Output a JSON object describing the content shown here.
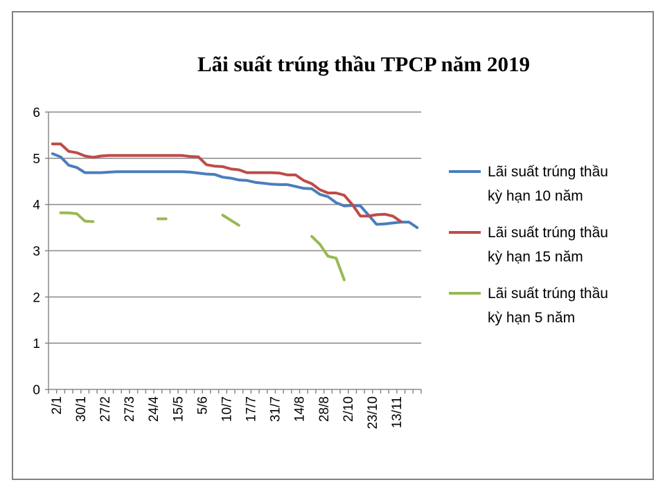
{
  "chart_data": {
    "type": "line",
    "title": "Lãi suất trúng thầu TPCP năm 2019",
    "xlabel": "",
    "ylabel": "",
    "ylim": [
      0,
      6
    ],
    "yticks": [
      "0",
      "1",
      "2",
      "3",
      "4",
      "5",
      "6"
    ],
    "grid": true,
    "legend_position": "right",
    "categories": [
      "2/1",
      "",
      "",
      "30/1",
      "",
      "",
      "27/2",
      "",
      "",
      "27/3",
      "",
      "",
      "24/4",
      "",
      "",
      "15/5",
      "",
      "",
      "5/6",
      "",
      "",
      "10/7",
      "",
      "",
      "17/7",
      "",
      "",
      "31/7",
      "",
      "",
      "14/8",
      "",
      "",
      "28/8",
      "",
      "",
      "2/10",
      "",
      "",
      "23/10",
      "",
      "",
      "13/11",
      "",
      "",
      ""
    ],
    "series": [
      {
        "name": "Lãi suất trúng thầu kỳ hạn 10 năm",
        "color": "#4a7ebb",
        "values": [
          5.1,
          5.03,
          4.85,
          4.8,
          4.69,
          4.69,
          4.69,
          4.7,
          4.71,
          4.71,
          4.71,
          4.71,
          4.71,
          4.71,
          4.71,
          4.71,
          4.71,
          4.7,
          4.68,
          4.66,
          4.65,
          4.59,
          4.57,
          4.53,
          4.52,
          4.48,
          4.46,
          4.44,
          4.43,
          4.43,
          4.39,
          4.35,
          4.34,
          4.22,
          4.17,
          4.04,
          3.97,
          3.98,
          3.97,
          3.77,
          3.57,
          3.58,
          3.6,
          3.62,
          3.62,
          3.5
        ]
      },
      {
        "name": "Lãi suất trúng thầu kỳ hạn 15 năm",
        "color": "#be4b48",
        "values": [
          5.31,
          5.31,
          5.15,
          5.12,
          5.05,
          5.02,
          5.05,
          5.06,
          5.06,
          5.06,
          5.06,
          5.06,
          5.06,
          5.06,
          5.06,
          5.06,
          5.06,
          5.04,
          5.03,
          4.86,
          4.83,
          4.82,
          4.77,
          4.75,
          4.69,
          4.69,
          4.69,
          4.69,
          4.68,
          4.64,
          4.64,
          4.52,
          4.45,
          4.32,
          4.25,
          4.25,
          4.2,
          4.0,
          3.75,
          3.75,
          3.78,
          3.79,
          3.75,
          3.63,
          null,
          null
        ]
      },
      {
        "name": "Lãi suất trúng thầu kỳ hạn 5 năm",
        "color": "#98b954",
        "values": [
          null,
          3.82,
          3.82,
          3.8,
          3.64,
          3.63,
          null,
          null,
          null,
          null,
          null,
          null,
          null,
          3.69,
          3.69,
          null,
          null,
          null,
          null,
          null,
          null,
          3.77,
          3.66,
          3.55,
          null,
          null,
          null,
          null,
          null,
          null,
          null,
          null,
          3.31,
          3.14,
          2.88,
          2.84,
          2.37,
          null,
          null,
          null,
          null,
          null,
          null,
          null,
          null,
          null
        ]
      }
    ]
  }
}
